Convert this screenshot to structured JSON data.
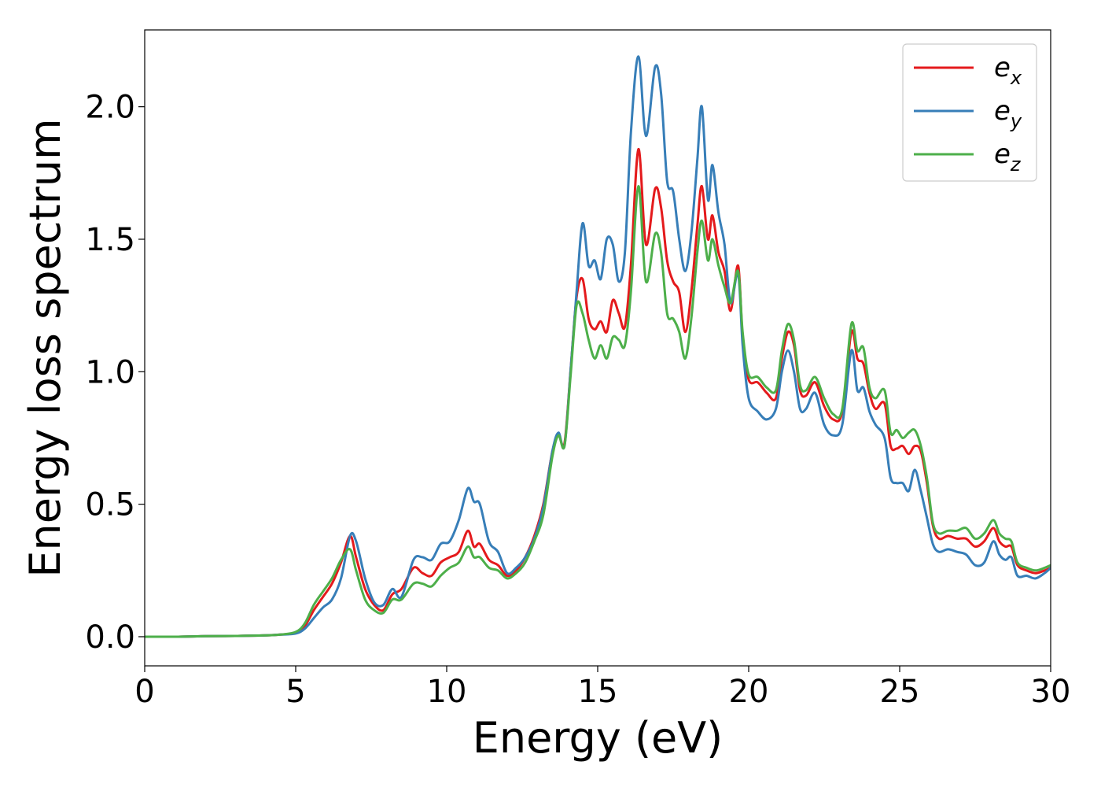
{
  "chart_data": {
    "type": "line",
    "title": "",
    "xlabel": "Energy (eV)",
    "ylabel": "Energy loss spectrum",
    "xlim": [
      0,
      30
    ],
    "ylim": [
      -0.11,
      2.29
    ],
    "xticks": [
      0,
      5,
      10,
      15,
      20,
      25,
      30
    ],
    "yticks": [
      0.0,
      0.5,
      1.0,
      1.5,
      2.0
    ],
    "xtick_labels": [
      "0",
      "5",
      "10",
      "15",
      "20",
      "25",
      "30"
    ],
    "ytick_labels": [
      "0.0",
      "0.5",
      "1.0",
      "1.5",
      "2.0"
    ],
    "grid": false,
    "legend_position": "top-right",
    "series": [
      {
        "name_base": "e",
        "name_sub": "x",
        "color": "#e41a1c",
        "x": [
          0,
          1,
          2,
          3,
          4,
          4.5,
          5,
          5.3,
          5.6,
          5.9,
          6.2,
          6.5,
          6.8,
          7.0,
          7.3,
          7.6,
          7.9,
          8.2,
          8.5,
          8.9,
          9.2,
          9.5,
          9.8,
          10.1,
          10.4,
          10.7,
          10.9,
          11.1,
          11.4,
          11.7,
          12.0,
          12.3,
          12.6,
          12.9,
          13.2,
          13.5,
          13.7,
          13.9,
          14.1,
          14.3,
          14.5,
          14.7,
          14.9,
          15.1,
          15.3,
          15.5,
          15.7,
          15.9,
          16.1,
          16.35,
          16.6,
          16.9,
          17.1,
          17.3,
          17.5,
          17.7,
          17.9,
          18.1,
          18.3,
          18.45,
          18.65,
          18.8,
          19.0,
          19.2,
          19.4,
          19.65,
          19.8,
          20.0,
          20.3,
          20.6,
          20.9,
          21.1,
          21.3,
          21.5,
          21.7,
          21.9,
          22.2,
          22.5,
          22.8,
          23.1,
          23.4,
          23.6,
          23.8,
          24.0,
          24.2,
          24.5,
          24.7,
          24.9,
          25.1,
          25.3,
          25.5,
          25.7,
          25.9,
          26.1,
          26.3,
          26.6,
          26.9,
          27.2,
          27.5,
          27.8,
          28.1,
          28.3,
          28.5,
          28.7,
          28.9,
          29.2,
          29.5,
          29.8,
          30.0
        ],
        "y": [
          0,
          0,
          0.002,
          0.003,
          0.005,
          0.008,
          0.015,
          0.04,
          0.1,
          0.15,
          0.2,
          0.28,
          0.38,
          0.3,
          0.18,
          0.12,
          0.1,
          0.16,
          0.18,
          0.26,
          0.24,
          0.23,
          0.28,
          0.3,
          0.32,
          0.4,
          0.34,
          0.35,
          0.29,
          0.27,
          0.23,
          0.25,
          0.3,
          0.38,
          0.5,
          0.7,
          0.76,
          0.73,
          1.0,
          1.28,
          1.35,
          1.2,
          1.16,
          1.19,
          1.15,
          1.27,
          1.22,
          1.17,
          1.4,
          1.84,
          1.48,
          1.69,
          1.62,
          1.42,
          1.34,
          1.3,
          1.15,
          1.3,
          1.55,
          1.7,
          1.5,
          1.59,
          1.45,
          1.38,
          1.23,
          1.4,
          1.13,
          0.97,
          0.96,
          0.92,
          0.9,
          1.05,
          1.15,
          1.1,
          0.93,
          0.91,
          0.96,
          0.87,
          0.82,
          0.85,
          1.15,
          1.05,
          1.03,
          0.92,
          0.86,
          0.88,
          0.72,
          0.71,
          0.72,
          0.69,
          0.72,
          0.7,
          0.58,
          0.42,
          0.37,
          0.38,
          0.37,
          0.37,
          0.34,
          0.36,
          0.41,
          0.36,
          0.34,
          0.34,
          0.27,
          0.25,
          0.24,
          0.25,
          0.26
        ]
      },
      {
        "name_base": "e",
        "name_sub": "y",
        "color": "#377eb8",
        "x": [
          0,
          1,
          2,
          3,
          4,
          4.5,
          5,
          5.3,
          5.6,
          5.9,
          6.2,
          6.5,
          6.8,
          7.0,
          7.3,
          7.6,
          7.9,
          8.2,
          8.5,
          8.9,
          9.2,
          9.5,
          9.8,
          10.1,
          10.4,
          10.7,
          10.9,
          11.1,
          11.4,
          11.7,
          12.0,
          12.3,
          12.6,
          12.9,
          13.2,
          13.5,
          13.7,
          13.9,
          14.1,
          14.3,
          14.5,
          14.7,
          14.9,
          15.1,
          15.3,
          15.5,
          15.7,
          15.9,
          16.1,
          16.35,
          16.6,
          16.9,
          17.1,
          17.3,
          17.5,
          17.7,
          17.9,
          18.1,
          18.3,
          18.45,
          18.65,
          18.8,
          19.0,
          19.2,
          19.4,
          19.65,
          19.8,
          20.0,
          20.3,
          20.6,
          20.9,
          21.1,
          21.3,
          21.5,
          21.7,
          21.9,
          22.2,
          22.5,
          22.8,
          23.1,
          23.4,
          23.6,
          23.8,
          24.0,
          24.2,
          24.5,
          24.7,
          24.9,
          25.1,
          25.3,
          25.5,
          25.7,
          25.9,
          26.1,
          26.3,
          26.6,
          26.9,
          27.2,
          27.5,
          27.8,
          28.1,
          28.3,
          28.5,
          28.7,
          28.9,
          29.2,
          29.5,
          29.8,
          30.0
        ],
        "y": [
          0,
          0,
          0.002,
          0.003,
          0.005,
          0.008,
          0.012,
          0.03,
          0.07,
          0.11,
          0.14,
          0.22,
          0.38,
          0.36,
          0.22,
          0.13,
          0.12,
          0.18,
          0.15,
          0.29,
          0.3,
          0.29,
          0.35,
          0.36,
          0.44,
          0.56,
          0.51,
          0.5,
          0.36,
          0.32,
          0.24,
          0.26,
          0.3,
          0.37,
          0.49,
          0.7,
          0.77,
          0.72,
          1.0,
          1.3,
          1.56,
          1.4,
          1.42,
          1.35,
          1.5,
          1.48,
          1.34,
          1.45,
          1.9,
          2.19,
          1.89,
          2.15,
          2.05,
          1.72,
          1.68,
          1.5,
          1.38,
          1.52,
          1.8,
          2.0,
          1.65,
          1.78,
          1.6,
          1.48,
          1.26,
          1.37,
          1.1,
          0.9,
          0.85,
          0.82,
          0.86,
          1.0,
          1.08,
          1.0,
          0.86,
          0.86,
          0.92,
          0.8,
          0.76,
          0.8,
          1.08,
          0.93,
          0.94,
          0.85,
          0.8,
          0.75,
          0.6,
          0.58,
          0.58,
          0.55,
          0.63,
          0.55,
          0.45,
          0.35,
          0.32,
          0.33,
          0.32,
          0.31,
          0.27,
          0.28,
          0.36,
          0.31,
          0.29,
          0.3,
          0.23,
          0.23,
          0.22,
          0.24,
          0.26
        ]
      },
      {
        "name_base": "e",
        "name_sub": "z",
        "color": "#4daf4a",
        "x": [
          0,
          1,
          2,
          3,
          4,
          4.5,
          5,
          5.3,
          5.6,
          5.9,
          6.2,
          6.5,
          6.8,
          7.0,
          7.3,
          7.6,
          7.9,
          8.2,
          8.5,
          8.9,
          9.2,
          9.5,
          9.8,
          10.1,
          10.4,
          10.7,
          10.9,
          11.1,
          11.4,
          11.7,
          12.0,
          12.3,
          12.6,
          12.9,
          13.2,
          13.5,
          13.7,
          13.9,
          14.1,
          14.3,
          14.5,
          14.7,
          14.9,
          15.1,
          15.3,
          15.5,
          15.7,
          15.9,
          16.1,
          16.35,
          16.6,
          16.9,
          17.1,
          17.3,
          17.5,
          17.7,
          17.9,
          18.1,
          18.3,
          18.45,
          18.65,
          18.8,
          19.0,
          19.2,
          19.4,
          19.65,
          19.8,
          20.0,
          20.3,
          20.6,
          20.9,
          21.1,
          21.3,
          21.5,
          21.7,
          21.9,
          22.2,
          22.5,
          22.8,
          23.1,
          23.4,
          23.6,
          23.8,
          24.0,
          24.2,
          24.5,
          24.7,
          24.9,
          25.1,
          25.3,
          25.5,
          25.7,
          25.9,
          26.1,
          26.3,
          26.6,
          26.9,
          27.2,
          27.5,
          27.8,
          28.1,
          28.3,
          28.5,
          28.7,
          28.9,
          29.2,
          29.5,
          29.8,
          30.0
        ],
        "y": [
          0,
          0,
          0.002,
          0.003,
          0.005,
          0.008,
          0.018,
          0.05,
          0.12,
          0.17,
          0.22,
          0.29,
          0.33,
          0.25,
          0.14,
          0.1,
          0.09,
          0.14,
          0.14,
          0.2,
          0.2,
          0.19,
          0.23,
          0.26,
          0.28,
          0.34,
          0.3,
          0.3,
          0.26,
          0.25,
          0.22,
          0.24,
          0.28,
          0.36,
          0.46,
          0.68,
          0.76,
          0.72,
          0.98,
          1.25,
          1.22,
          1.12,
          1.05,
          1.1,
          1.05,
          1.13,
          1.12,
          1.1,
          1.3,
          1.7,
          1.34,
          1.52,
          1.45,
          1.22,
          1.2,
          1.15,
          1.05,
          1.2,
          1.45,
          1.57,
          1.42,
          1.5,
          1.4,
          1.32,
          1.26,
          1.38,
          1.15,
          0.99,
          0.98,
          0.94,
          0.93,
          1.08,
          1.18,
          1.12,
          0.95,
          0.93,
          0.98,
          0.9,
          0.84,
          0.86,
          1.18,
          1.08,
          1.09,
          0.94,
          0.9,
          0.93,
          0.77,
          0.78,
          0.75,
          0.77,
          0.78,
          0.72,
          0.6,
          0.43,
          0.39,
          0.4,
          0.4,
          0.41,
          0.37,
          0.39,
          0.44,
          0.39,
          0.37,
          0.36,
          0.28,
          0.26,
          0.25,
          0.26,
          0.27
        ]
      }
    ]
  }
}
